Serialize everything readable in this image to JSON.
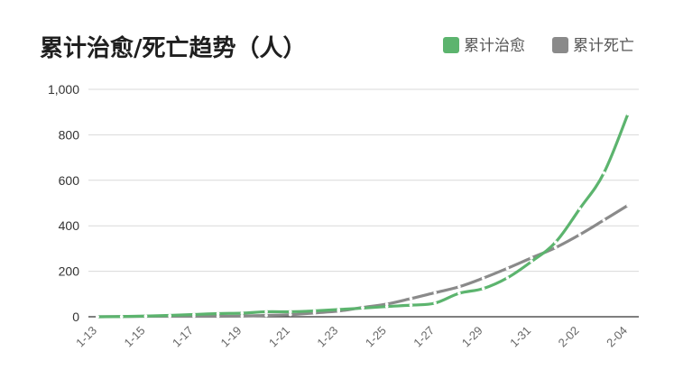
{
  "chart_data": {
    "type": "line",
    "title": "累计治愈/死亡趋势（人）",
    "xlabel": "",
    "ylabel": "",
    "ylim": [
      0,
      1000
    ],
    "yticks": [
      0,
      200,
      400,
      600,
      800,
      1000
    ],
    "ytick_labels": [
      "0",
      "200",
      "400",
      "600",
      "800",
      "1,000"
    ],
    "x": [
      "1-13",
      "1-14",
      "1-15",
      "1-16",
      "1-17",
      "1-18",
      "1-19",
      "1-20",
      "1-21",
      "1-22",
      "1-23",
      "1-24",
      "1-25",
      "1-26",
      "1-27",
      "1-28",
      "1-29",
      "1-30",
      "1-31",
      "2-01",
      "2-02",
      "2-03",
      "2-04"
    ],
    "xtick_labels": [
      "1-13",
      "1-15",
      "1-17",
      "1-19",
      "1-21",
      "1-23",
      "1-25",
      "1-27",
      "1-29",
      "1-31",
      "2-02",
      "2-04"
    ],
    "grid": true,
    "legend_position": "top-right",
    "series": [
      {
        "name": "累计治愈",
        "color": "#5cb46e",
        "values": [
          0,
          1,
          3,
          6,
          10,
          14,
          16,
          22,
          22,
          26,
          32,
          38,
          45,
          51,
          60,
          103,
          124,
          171,
          243,
          328,
          475,
          632,
          892
        ]
      },
      {
        "name": "累计死亡",
        "color": "#8a8a8a",
        "values": [
          0,
          1,
          2,
          2,
          2,
          2,
          3,
          6,
          9,
          17,
          25,
          41,
          56,
          80,
          106,
          132,
          170,
          213,
          259,
          304,
          361,
          425,
          490
        ]
      }
    ]
  }
}
